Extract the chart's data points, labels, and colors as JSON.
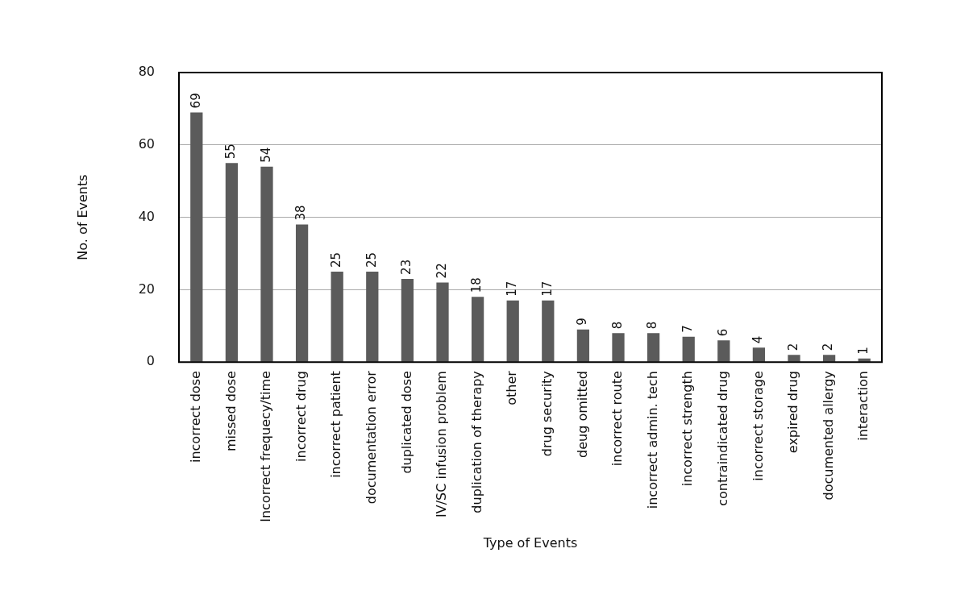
{
  "chart_data": {
    "type": "bar",
    "xlabel": "Type of Events",
    "ylabel": "No. of Events",
    "categories": [
      "incorrect dose",
      "missed dose",
      "Incorrect frequecy/time",
      "incorrect drug",
      "incorrect patient",
      "documentation error",
      "duplicated dose",
      "IV/SC infusion problem",
      "duplication of therapy",
      "other",
      "drug security",
      "deug omitted",
      "incorrect route",
      "incorrect admin. tech",
      "incorrect strength",
      "contraindicated drug",
      "incorrect storage",
      "expired drug",
      "documented allergy",
      "interaction"
    ],
    "values": [
      69,
      55,
      54,
      38,
      25,
      25,
      23,
      22,
      18,
      17,
      17,
      9,
      8,
      8,
      7,
      6,
      4,
      2,
      2,
      1
    ],
    "color": "#5b5b5b",
    "ylim": [
      0,
      80
    ],
    "yticks": [
      0,
      20,
      40,
      60,
      80
    ],
    "grid": "y",
    "data_labels": true,
    "legend": false
  }
}
